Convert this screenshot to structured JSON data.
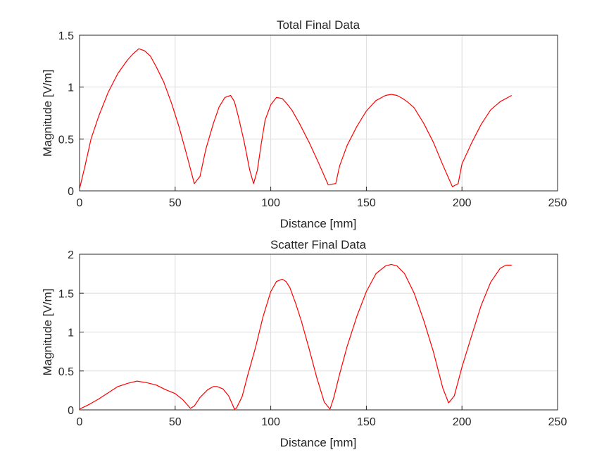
{
  "figure": {
    "background": "#ffffff",
    "line_color": "#ff0000",
    "grid_color": "#dcdcdc",
    "axis_color": "#262626"
  },
  "chart_data": [
    {
      "type": "line",
      "title": "Total Final Data",
      "xlabel": "Distance [mm]",
      "ylabel": "Magnitude [V/m]",
      "xlim": [
        0,
        250
      ],
      "ylim": [
        0,
        1.5
      ],
      "xticks": [
        0,
        50,
        100,
        150,
        200,
        250
      ],
      "yticks": [
        0,
        0.5,
        1,
        1.5
      ],
      "xtick_labels": [
        "0",
        "50",
        "100",
        "150",
        "200",
        "250"
      ],
      "ytick_labels": [
        "0",
        "0.5",
        "1",
        "1.5"
      ],
      "grid": true,
      "series": [
        {
          "color": "#ff0000",
          "x": [
            0,
            3,
            6,
            10,
            15,
            20,
            25,
            28,
            31,
            34,
            37,
            40,
            44,
            48,
            52,
            56,
            60,
            63,
            66,
            70,
            73,
            76,
            79,
            81,
            83,
            86,
            89,
            91,
            93,
            95,
            97,
            100,
            103,
            106,
            108,
            111,
            115,
            120,
            125,
            130,
            134,
            136,
            140,
            145,
            150,
            155,
            160,
            163,
            166,
            169,
            172,
            175,
            180,
            185,
            190,
            195,
            198,
            200,
            205,
            210,
            215,
            220,
            226
          ],
          "y": [
            0.02,
            0.25,
            0.5,
            0.72,
            0.95,
            1.13,
            1.26,
            1.32,
            1.37,
            1.35,
            1.3,
            1.2,
            1.05,
            0.85,
            0.62,
            0.35,
            0.07,
            0.14,
            0.4,
            0.65,
            0.81,
            0.9,
            0.92,
            0.86,
            0.72,
            0.48,
            0.2,
            0.07,
            0.2,
            0.45,
            0.68,
            0.83,
            0.9,
            0.89,
            0.85,
            0.78,
            0.65,
            0.47,
            0.27,
            0.06,
            0.07,
            0.24,
            0.44,
            0.62,
            0.77,
            0.87,
            0.92,
            0.93,
            0.92,
            0.89,
            0.85,
            0.8,
            0.65,
            0.47,
            0.25,
            0.04,
            0.07,
            0.26,
            0.46,
            0.64,
            0.78,
            0.86,
            0.92
          ]
        }
      ]
    },
    {
      "type": "line",
      "title": "Scatter Final Data",
      "xlabel": "Distance [mm]",
      "ylabel": "Magnitude [V/m]",
      "xlim": [
        0,
        250
      ],
      "ylim": [
        0,
        2
      ],
      "xticks": [
        0,
        50,
        100,
        150,
        200,
        250
      ],
      "yticks": [
        0,
        0.5,
        1,
        1.5,
        2
      ],
      "xtick_labels": [
        "0",
        "50",
        "100",
        "150",
        "200",
        "250"
      ],
      "ytick_labels": [
        "0",
        "0.5",
        "1",
        "1.5",
        "2"
      ],
      "grid": true,
      "series": [
        {
          "color": "#ff0000",
          "x": [
            0,
            5,
            10,
            15,
            20,
            25,
            30,
            35,
            40,
            45,
            50,
            54,
            58,
            60,
            63,
            67,
            70,
            72,
            75,
            78,
            81,
            82,
            85,
            88,
            92,
            96,
            100,
            103,
            106,
            108,
            110,
            113,
            116,
            120,
            124,
            128,
            131,
            133,
            136,
            140,
            145,
            150,
            155,
            160,
            163,
            166,
            170,
            175,
            180,
            185,
            190,
            193,
            196,
            200,
            205,
            210,
            215,
            220,
            223,
            226
          ],
          "y": [
            0.01,
            0.07,
            0.14,
            0.22,
            0.3,
            0.34,
            0.37,
            0.35,
            0.32,
            0.26,
            0.21,
            0.13,
            0.02,
            0.05,
            0.16,
            0.26,
            0.3,
            0.3,
            0.27,
            0.18,
            0.01,
            0.02,
            0.17,
            0.45,
            0.8,
            1.2,
            1.52,
            1.65,
            1.68,
            1.65,
            1.57,
            1.37,
            1.14,
            0.79,
            0.42,
            0.1,
            0.01,
            0.16,
            0.46,
            0.82,
            1.2,
            1.52,
            1.75,
            1.85,
            1.87,
            1.85,
            1.75,
            1.5,
            1.15,
            0.75,
            0.28,
            0.09,
            0.18,
            0.55,
            0.95,
            1.34,
            1.64,
            1.82,
            1.86,
            1.86
          ]
        }
      ]
    }
  ]
}
